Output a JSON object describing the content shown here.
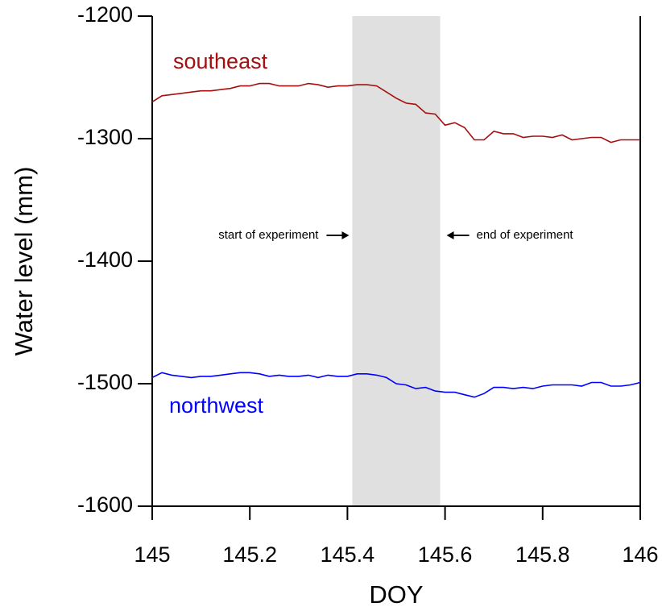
{
  "chart_data": {
    "type": "line",
    "x_label": "DOY",
    "y_label": "Water level (mm)",
    "xlim": [
      145,
      146
    ],
    "xticks": [
      145,
      145.2,
      145.4,
      145.6,
      145.8,
      146
    ],
    "ylim": [
      -1600,
      -1200
    ],
    "yticks": [
      -1200,
      -1300,
      -1400,
      -1500,
      -1600
    ],
    "shade": {
      "xlim": [
        145.41,
        145.59
      ],
      "color": "#e0e0e0"
    },
    "annotations": [
      "start of experiment",
      "end of experiment"
    ],
    "x": [
      145,
      145.02,
      145.04,
      145.06,
      145.08,
      145.1,
      145.12,
      145.14,
      145.16,
      145.18,
      145.2,
      145.22,
      145.24,
      145.26,
      145.28,
      145.3,
      145.32,
      145.34,
      145.36,
      145.38,
      145.4,
      145.42,
      145.44,
      145.46,
      145.48,
      145.5,
      145.52,
      145.54,
      145.56,
      145.58,
      145.6,
      145.62,
      145.64,
      145.66,
      145.68,
      145.7,
      145.72,
      145.74,
      145.76,
      145.78,
      145.8,
      145.82,
      145.84,
      145.86,
      145.88,
      145.9,
      145.92,
      145.94,
      145.96,
      145.98,
      146
    ],
    "series": [
      {
        "name": "southeast",
        "color": "#a50f0f",
        "values": [
          -1270,
          -1265,
          -1264,
          -1263,
          -1262,
          -1261,
          -1261,
          -1260,
          -1259,
          -1257,
          -1257,
          -1255,
          -1255,
          -1257,
          -1257,
          -1257,
          -1255,
          -1256,
          -1258,
          -1257,
          -1257,
          -1256,
          -1256,
          -1257,
          -1262,
          -1267,
          -1271,
          -1272,
          -1279,
          -1280,
          -1289,
          -1287,
          -1291,
          -1301,
          -1301,
          -1294,
          -1296,
          -1296,
          -1299,
          -1298,
          -1298,
          -1299,
          -1297,
          -1301,
          -1300,
          -1299,
          -1299,
          -1303,
          -1301,
          -1301,
          -1301
        ]
      },
      {
        "name": "northwest",
        "color": "#0000ff",
        "values": [
          -1495,
          -1491,
          -1493,
          -1494,
          -1495,
          -1494,
          -1494,
          -1493,
          -1492,
          -1491,
          -1491,
          -1492,
          -1494,
          -1493,
          -1494,
          -1494,
          -1493,
          -1495,
          -1493,
          -1494,
          -1494,
          -1492,
          -1492,
          -1493,
          -1495,
          -1500,
          -1501,
          -1504,
          -1503,
          -1506,
          -1507,
          -1507,
          -1509,
          -1511,
          -1508,
          -1503,
          -1503,
          -1504,
          -1503,
          -1504,
          -1502,
          -1501,
          -1501,
          -1501,
          -1502,
          -1499,
          -1499,
          -1502,
          -1502,
          -1501,
          -1499
        ]
      }
    ]
  }
}
